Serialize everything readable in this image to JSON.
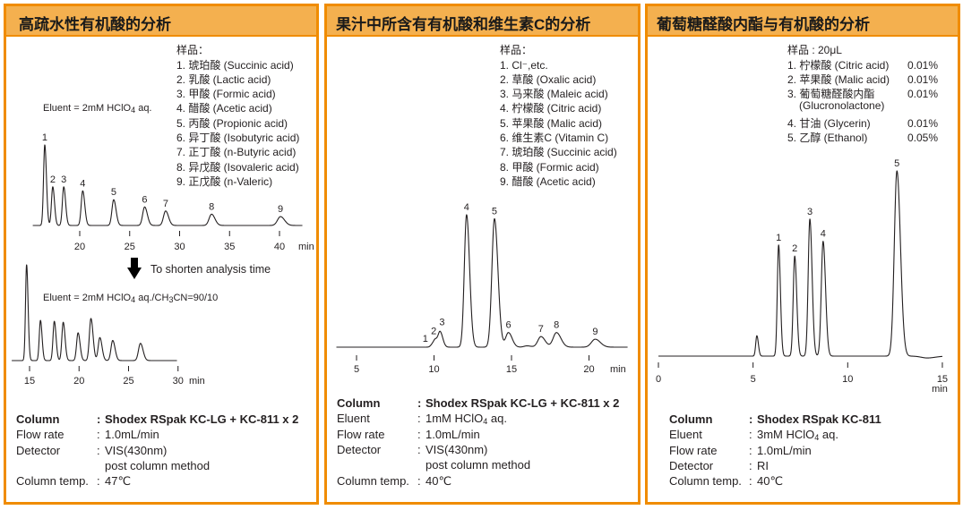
{
  "colors": {
    "border": "#f08c00",
    "header_fill": "#f4b04f",
    "trace": "#231f20"
  },
  "panels": [
    {
      "title": "高疏水性有机酸的分析",
      "sample_heading": "样品：",
      "samples": [
        "1. 琥珀酸 (Succinic acid)",
        "2. 乳酸 (Lactic acid)",
        "3. 甲酸 (Formic acid)",
        "4. 醋酸 (Acetic acid)",
        "5. 丙酸 (Propionic acid)",
        "6. 异丁酸 (Isobutyric acid)",
        "7. 正丁酸 (n-Butyric acid)",
        "8. 异戊酸 (Isovaleric acid)",
        "9. 正戊酸 (n-Valeric)"
      ],
      "eluent1": [
        "Eluent = 2mM HClO",
        "4",
        " aq."
      ],
      "arrow_text": "To shorten analysis time",
      "eluent2": [
        "Eluent = 2mM HClO",
        "4",
        " aq./CH",
        "3",
        "CN=90/10"
      ],
      "specs": [
        {
          "label": "Column",
          "colon": ":",
          "value": "Shodex RSpak KC-LG + KC-811 x 2"
        },
        {
          "label": "Flow rate",
          "colon": ":",
          "value": "1.0mL/min"
        },
        {
          "label": "Detector",
          "colon": ":",
          "value": "VIS(430nm)"
        },
        {
          "label": "",
          "colon": "",
          "value": "post column method"
        },
        {
          "label": "Column temp.",
          "colon": ":",
          "value": "47℃"
        }
      ]
    },
    {
      "title": "果汁中所含有有机酸和维生素C的分析",
      "sample_heading": "样品：",
      "samples": [
        "1. Cl⁻,etc.",
        "2. 草酸 (Oxalic acid)",
        "3. 马来酸 (Maleic acid)",
        "4. 柠檬酸 (Citric acid)",
        "5. 苹果酸 (Malic acid)",
        "6. 维生素C (Vitamin C)",
        "7. 琥珀酸 (Succinic acid)",
        "8. 甲酸 (Formic acid)",
        "9. 醋酸 (Acetic acid)"
      ],
      "specs": [
        {
          "label": "Column",
          "colon": ":",
          "value": "Shodex RSpak KC-LG + KC-811 x 2"
        },
        {
          "label": "Eluent",
          "colon": ":",
          "value": "1mM HClO",
          "sub": "4",
          "value2": " aq."
        },
        {
          "label": "Flow rate",
          "colon": ":",
          "value": "1.0mL/min"
        },
        {
          "label": "Detector",
          "colon": ":",
          "value": "VIS(430nm)"
        },
        {
          "label": "",
          "colon": "",
          "value": "post column method"
        },
        {
          "label": "Column temp.",
          "colon": ":",
          "value": "40℃"
        }
      ]
    },
    {
      "title": "葡萄糖醛酸内酯与有机酸的分析",
      "sample_heading": "样品 : 20μL",
      "samples": [
        {
          "name": "1. 柠檬酸 (Citric acid)",
          "conc": "0.01%"
        },
        {
          "name": "2. 苹果酸 (Malic acid)",
          "conc": "0.01%"
        },
        {
          "name": "3. 葡萄糖醛酸内酯",
          "conc": "0.01%"
        },
        {
          "name": "(Glucronolactone)",
          "conc": ""
        },
        {
          "name": "4. 甘油 (Glycerin)",
          "conc": "0.01%"
        },
        {
          "name": "5. 乙醇 (Ethanol)",
          "conc": "0.05%"
        }
      ],
      "specs": [
        {
          "label": "Column",
          "colon": ":",
          "value": "Shodex RSpak KC-811"
        },
        {
          "label": "Eluent",
          "colon": ":",
          "value": "3mM HClO",
          "sub": "4",
          "value2": " aq."
        },
        {
          "label": "Flow rate",
          "colon": ":",
          "value": "1.0mL/min"
        },
        {
          "label": "Detector",
          "colon": ":",
          "value": "RI"
        },
        {
          "label": "Column temp.",
          "colon": ":",
          "value": "40℃"
        }
      ]
    }
  ],
  "chart_data": [
    {
      "type": "line",
      "name": "",
      "xlabel": "min",
      "x_range": [
        15.3,
        42.3
      ],
      "x_ticks": [
        20,
        25,
        30,
        35,
        40
      ],
      "grid": false,
      "peaks": [
        {
          "label": "1",
          "time": 16.5,
          "rel_height": 100
        },
        {
          "label": "2",
          "time": 17.3,
          "rel_height": 48
        },
        {
          "label": "3",
          "time": 18.4,
          "rel_height": 48
        },
        {
          "label": "4",
          "time": 20.3,
          "rel_height": 43
        },
        {
          "label": "5",
          "time": 23.4,
          "rel_height": 32
        },
        {
          "label": "6",
          "time": 26.5,
          "rel_height": 23
        },
        {
          "label": "7",
          "time": 28.6,
          "rel_height": 18
        },
        {
          "label": "8",
          "time": 33.2,
          "rel_height": 14
        },
        {
          "label": "9",
          "time": 40.1,
          "rel_height": 11
        }
      ]
    },
    {
      "type": "line",
      "xlabel": "min",
      "x_range": [
        13.2,
        29.9
      ],
      "x_ticks": [
        15,
        20,
        25,
        30
      ],
      "grid": false,
      "peaks": [
        {
          "label": "",
          "time": 14.7,
          "rel_height": 100
        },
        {
          "label": "",
          "time": 16.1,
          "rel_height": 42
        },
        {
          "label": "",
          "time": 17.5,
          "rel_height": 41
        },
        {
          "label": "",
          "time": 18.4,
          "rel_height": 40
        },
        {
          "label": "",
          "time": 19.9,
          "rel_height": 29
        },
        {
          "label": "",
          "time": 21.2,
          "rel_height": 44
        },
        {
          "label": "",
          "time": 22.1,
          "rel_height": 24
        },
        {
          "label": "",
          "time": 23.4,
          "rel_height": 21
        },
        {
          "label": "",
          "time": 26.2,
          "rel_height": 18
        }
      ]
    },
    {
      "type": "line",
      "xlabel": "min",
      "x_range": [
        3.7,
        22.5
      ],
      "x_ticks": [
        5,
        10,
        15,
        20
      ],
      "grid": false,
      "peaks": [
        {
          "label": "1",
          "time": 9.9,
          "rel_height": 2
        },
        {
          "label": "2",
          "time": 10.1,
          "rel_height": 5
        },
        {
          "label": "3",
          "time": 10.4,
          "rel_height": 11
        },
        {
          "label": "4",
          "time": 12.1,
          "rel_height": 100
        },
        {
          "label": "5",
          "time": 13.9,
          "rel_height": 97
        },
        {
          "label": "6",
          "time": 14.8,
          "rel_height": 11
        },
        {
          "label": "",
          "time": 16.0,
          "rel_height": 1
        },
        {
          "label": "7",
          "time": 16.9,
          "rel_height": 8
        },
        {
          "label": "8",
          "time": 17.9,
          "rel_height": 11
        },
        {
          "label": "9",
          "time": 20.4,
          "rel_height": 6
        }
      ]
    },
    {
      "type": "line",
      "xlabel": "min",
      "x_range": [
        0,
        15
      ],
      "x_ticks": [
        0,
        5,
        10,
        15
      ],
      "grid": false,
      "peaks": [
        {
          "label": "",
          "time": 5.2,
          "rel_height": 11
        },
        {
          "label": "1",
          "time": 6.35,
          "rel_height": 60
        },
        {
          "label": "2",
          "time": 7.2,
          "rel_height": 54
        },
        {
          "label": "3",
          "time": 8.0,
          "rel_height": 74
        },
        {
          "label": "4",
          "time": 8.7,
          "rel_height": 62
        },
        {
          "label": "5",
          "time": 12.6,
          "rel_height": 100
        },
        {
          "label": "",
          "time": 14.2,
          "rel_height": -1
        }
      ]
    }
  ]
}
